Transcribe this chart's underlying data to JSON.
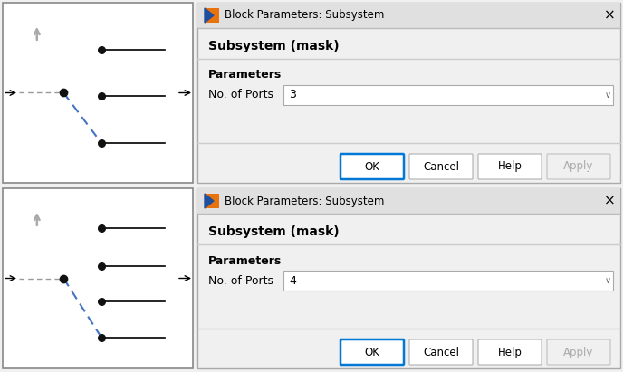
{
  "bg_color": "#f0f0f0",
  "block_bg": "#ffffff",
  "block_border": "#888888",
  "dialog_bg": "#f0f0f0",
  "dialog_white": "#ffffff",
  "title_bar_color": "#e8e8e8",
  "title_text": "Block Parameters: Subsystem",
  "subtitle_text": "Subsystem (mask)",
  "params_label": "Parameters",
  "port_label": "No. of Ports",
  "port_values": [
    "3",
    "4"
  ],
  "button_labels": [
    "OK",
    "Cancel",
    "Help",
    "Apply"
  ],
  "ok_border_color": "#0078d4",
  "switch_blue_color": "#4472c4",
  "switch_gray_color": "#999999",
  "dot_color": "#111111",
  "arrow_gray": "#aaaaaa",
  "divider_color": "#cccccc",
  "text_color": "#000000",
  "apply_color": "#aaaaaa",
  "icon_orange": "#e8720c",
  "icon_blue": "#1f4e9c"
}
